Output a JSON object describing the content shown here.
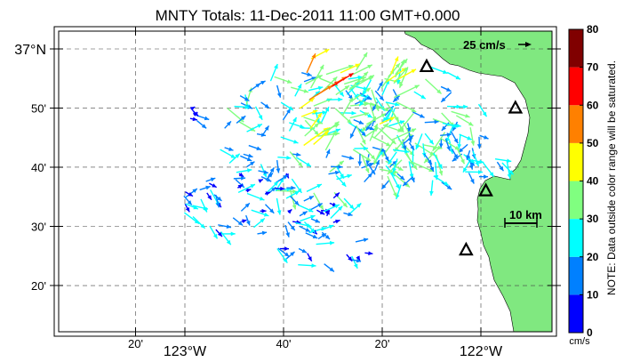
{
  "title": "MNTY Totals: 11-Dec-2011 11:00 GMT+0.000",
  "map": {
    "lon_range": [
      -123.33,
      -121.82
    ],
    "lat_range": [
      36.2,
      37.05
    ],
    "x_ticks": [
      {
        "lon": -123.1667,
        "label": "20'",
        "sub": false
      },
      {
        "lon": -123.0,
        "label": "123°W",
        "sub": true
      },
      {
        "lon": -122.6667,
        "label": "40'",
        "sub": false
      },
      {
        "lon": -122.3333,
        "label": "20'",
        "sub": false
      },
      {
        "lon": -122.0,
        "label": "122°W",
        "sub": true
      }
    ],
    "y_ticks": [
      {
        "lat": 37.0,
        "label": "37°N",
        "sub": true
      },
      {
        "lat": 36.8333,
        "label": "50'",
        "sub": false
      },
      {
        "lat": 36.6667,
        "label": "40'",
        "sub": false
      },
      {
        "lat": 36.5,
        "label": "30'",
        "sub": false
      },
      {
        "lat": 36.3333,
        "label": "20'",
        "sub": false
      }
    ],
    "land_color": "#80e880",
    "sites": [
      {
        "lon": -122.1833,
        "lat": 36.95
      },
      {
        "lon": -121.8833,
        "lat": 36.8333
      },
      {
        "lon": -121.9833,
        "lat": 36.6
      },
      {
        "lon": -122.05,
        "lat": 36.4333
      }
    ]
  },
  "scale_arrow_label": "25 cm/s",
  "scale_bar_label": "10 km",
  "colorbar": {
    "ticks": [
      "0",
      "10",
      "20",
      "30",
      "40",
      "50",
      "60",
      "70",
      "80"
    ],
    "colors": [
      "#0000ff",
      "#0080ff",
      "#00ffff",
      "#80ff80",
      "#ffff00",
      "#ff8000",
      "#ff0000",
      "#800000"
    ],
    "unit": "cm/s",
    "note": "NOTE: Data outside color range will be saturated."
  }
}
